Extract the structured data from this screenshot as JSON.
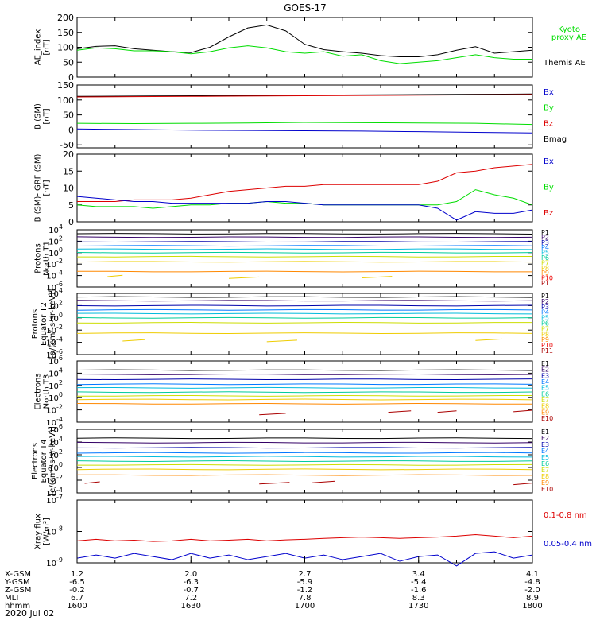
{
  "title": "GOES-17",
  "date_label": "2020 Jul 02",
  "ephemeris": {
    "row_labels": [
      "X-GSM",
      "Y-GSM",
      "Z-GSM",
      "MLT",
      "hhmm"
    ],
    "columns": [
      [
        "1.2",
        "-6.5",
        "-0.2",
        "6.7",
        "1600"
      ],
      [
        "2.0",
        "-6.3",
        "-0.7",
        "7.2",
        "1630"
      ],
      [
        "2.7",
        "-5.9",
        "-1.2",
        "7.8",
        "1700"
      ],
      [
        "3.4",
        "-5.4",
        "-1.6",
        "8.3",
        "1730"
      ],
      [
        "4.1",
        "-4.8",
        "-2.0",
        "8.9",
        "1800"
      ]
    ]
  },
  "colors": {
    "black": "#000000",
    "green": "#00dd00",
    "red": "#dd0000",
    "blue": "#0000cc",
    "darkred": "#880000",
    "P": [
      "#000000",
      "#330066",
      "#0000aa",
      "#0077ff",
      "#00bbdd",
      "#00cc99",
      "#ccdd00",
      "#eecc00",
      "#ff8800",
      "#ee0000",
      "#aa0000"
    ],
    "E": [
      "#000000",
      "#330066",
      "#0000aa",
      "#0077ff",
      "#00bbdd",
      "#00cc99",
      "#ccdd00",
      "#eecc00",
      "#ff8800",
      "#aa0000"
    ]
  },
  "chart_data": [
    {
      "type": "line",
      "ylabel": [
        "AE_index",
        "[nT]"
      ],
      "ylim": [
        0,
        200
      ],
      "yticks": [
        [
          "0",
          0
        ],
        [
          "50",
          50
        ],
        [
          "100",
          100
        ],
        [
          "150",
          150
        ],
        [
          "200",
          200
        ]
      ],
      "legend": [
        {
          "text": "Kyoto",
          "color": "#00dd00"
        },
        {
          "text": "proxy AE",
          "color": "#00dd00"
        },
        {
          "text": "Themis AE",
          "color": "#000000"
        }
      ],
      "x": [
        1600,
        1605,
        1610,
        1615,
        1620,
        1625,
        1630,
        1635,
        1640,
        1645,
        1650,
        1655,
        1700,
        1705,
        1710,
        1715,
        1720,
        1725,
        1730,
        1735,
        1740,
        1745,
        1750,
        1755,
        1800
      ],
      "series": [
        {
          "name": "Themis AE",
          "color": "#000000",
          "values": [
            95,
            103,
            105,
            95,
            90,
            85,
            82,
            100,
            135,
            165,
            175,
            155,
            110,
            92,
            85,
            80,
            72,
            68,
            68,
            75,
            90,
            102,
            80,
            85,
            90
          ]
        },
        {
          "name": "Kyoto proxy AE",
          "color": "#00dd00",
          "values": [
            90,
            98,
            95,
            88,
            88,
            85,
            78,
            85,
            98,
            105,
            98,
            85,
            80,
            85,
            70,
            75,
            55,
            45,
            50,
            55,
            65,
            75,
            65,
            60,
            60
          ]
        }
      ]
    },
    {
      "type": "line",
      "ylabel": [
        "B (SM)",
        "[nT]"
      ],
      "ylim": [
        -60,
        150
      ],
      "yticks": [
        [
          "-50",
          -50
        ],
        [
          "0",
          0
        ],
        [
          "50",
          50
        ],
        [
          "100",
          100
        ],
        [
          "150",
          150
        ]
      ],
      "legend": [
        {
          "text": "Bx",
          "color": "#0000cc"
        },
        {
          "text": "By",
          "color": "#00dd00"
        },
        {
          "text": "Bz",
          "color": "#dd0000"
        },
        {
          "text": "Bmag",
          "color": "#000000"
        }
      ],
      "x": [
        1600,
        1615,
        1630,
        1645,
        1700,
        1715,
        1730,
        1745,
        1800
      ],
      "series": [
        {
          "name": "Bmag",
          "color": "#000000",
          "values": [
            112,
            113,
            114,
            115,
            116,
            117,
            118,
            119,
            120
          ]
        },
        {
          "name": "Bz",
          "color": "#dd0000",
          "values": [
            110,
            111,
            112,
            113,
            114,
            115,
            116,
            117,
            118
          ]
        },
        {
          "name": "By",
          "color": "#00dd00",
          "values": [
            22,
            21,
            22,
            23,
            25,
            24,
            23,
            22,
            18
          ]
        },
        {
          "name": "Bx",
          "color": "#0000cc",
          "values": [
            3,
            1,
            -1,
            -2,
            -3,
            -4,
            -6,
            -8,
            -10
          ]
        }
      ]
    },
    {
      "type": "line",
      "ylabel": [
        "B (SM)-IGRF (SM)",
        "[nT]"
      ],
      "ylim": [
        0,
        20
      ],
      "yticks": [
        [
          "0",
          0
        ],
        [
          "5",
          5
        ],
        [
          "10",
          10
        ],
        [
          "15",
          15
        ],
        [
          "20",
          20
        ]
      ],
      "legend": [
        {
          "text": "Bx",
          "color": "#0000cc"
        },
        {
          "text": "By",
          "color": "#00dd00"
        },
        {
          "text": "Bz",
          "color": "#dd0000"
        }
      ],
      "x": [
        1600,
        1605,
        1610,
        1615,
        1620,
        1625,
        1630,
        1635,
        1640,
        1645,
        1650,
        1655,
        1700,
        1705,
        1710,
        1715,
        1720,
        1725,
        1730,
        1735,
        1740,
        1745,
        1750,
        1755,
        1800
      ],
      "series": [
        {
          "name": "Bz",
          "color": "#dd0000",
          "values": [
            6,
            6,
            6,
            6.5,
            6.5,
            6.5,
            7,
            8,
            9,
            9.5,
            10,
            10.5,
            10.5,
            11,
            11,
            11,
            11,
            11,
            11,
            12,
            14.5,
            15,
            16,
            16.5,
            17
          ]
        },
        {
          "name": "By",
          "color": "#00dd00",
          "values": [
            5,
            4.5,
            4.5,
            4.5,
            4,
            4.5,
            5,
            5,
            5.5,
            5.5,
            6,
            5.5,
            5.5,
            5,
            5,
            5,
            5,
            5,
            5,
            5,
            6,
            9.5,
            8,
            7,
            5
          ]
        },
        {
          "name": "Bx",
          "color": "#0000cc",
          "values": [
            7.5,
            7,
            6.5,
            6,
            6,
            5.5,
            5.5,
            5.5,
            5.5,
            5.5,
            6,
            6,
            5.5,
            5,
            5,
            5,
            5,
            5,
            5,
            4,
            0.5,
            3,
            2.5,
            2.5,
            3.5
          ]
        }
      ]
    },
    {
      "type": "line",
      "log": true,
      "ylabel": [
        "Protons",
        "North T1"
      ],
      "ylim_exp": [
        -6,
        4
      ],
      "tick_exps": [
        -6,
        -4,
        -2,
        0,
        2,
        4
      ],
      "legend": [
        "P1",
        "P2",
        "P3",
        "P4",
        "P5",
        "P6",
        "P7",
        "P8",
        "P9",
        "P10",
        "P11"
      ],
      "level_exps": [
        3.3,
        2.7,
        1.9,
        1.2,
        0.6,
        0,
        -0.7,
        -1.6,
        -3.3
      ],
      "fragments": [
        {
          "x0": 1608,
          "x1": 1612,
          "e": -4.2
        },
        {
          "x0": 1640,
          "x1": 1648,
          "e": -4.5
        },
        {
          "x0": 1715,
          "x1": 1723,
          "e": -4.4
        }
      ]
    },
    {
      "type": "line",
      "log": true,
      "ylabel": [
        "Protons",
        "Equator T2",
        "[p/(cm²-s-sr-keV)]"
      ],
      "ylim_exp": [
        -6,
        4
      ],
      "tick_exps": [
        -6,
        -4,
        -2,
        0,
        2,
        4
      ],
      "legend": [
        "P1",
        "P2",
        "P3",
        "P4",
        "P5",
        "P6",
        "P7",
        "P8",
        "P9",
        "P10",
        "P11"
      ],
      "level_exps": [
        3.4,
        2.8,
        2,
        1.3,
        0.7,
        0,
        -0.8,
        -2.5
      ],
      "fragments": [
        {
          "x0": 1612,
          "x1": 1618,
          "e": -3.8
        },
        {
          "x0": 1650,
          "x1": 1658,
          "e": -3.9
        },
        {
          "x0": 1745,
          "x1": 1752,
          "e": -3.7
        }
      ]
    },
    {
      "type": "line",
      "log": true,
      "ylabel": [
        "Electrons",
        "North T3"
      ],
      "ylim_exp": [
        -4,
        6
      ],
      "tick_exps": [
        -4,
        -2,
        0,
        2,
        4,
        6
      ],
      "legend": [
        "E1",
        "E2",
        "E3",
        "E4",
        "E5",
        "E6",
        "E7",
        "E8",
        "E9",
        "E10"
      ],
      "level_exps": [
        4.5,
        3.8,
        3,
        2.2,
        1.6,
        0.9,
        0.3,
        -0.3,
        -1
      ],
      "fragments": [
        {
          "x0": 1648,
          "x1": 1655,
          "e": -2.8
        },
        {
          "x0": 1722,
          "x1": 1728,
          "e": -2.4
        },
        {
          "x0": 1735,
          "x1": 1740,
          "e": -2.4
        },
        {
          "x0": 1755,
          "x1": 1800,
          "e": -2.3
        }
      ]
    },
    {
      "type": "line",
      "log": true,
      "ylabel": [
        "Electrons",
        "Equator T4",
        "[e/(cm²-s-sr-keV)]"
      ],
      "ylim_exp": [
        -4,
        6
      ],
      "tick_exps": [
        -4,
        -2,
        0,
        2,
        4,
        6
      ],
      "legend": [
        "E1",
        "E2",
        "E3",
        "E4",
        "E5",
        "E6",
        "E7",
        "E8",
        "E9",
        "E10"
      ],
      "level_exps": [
        4.6,
        3.9,
        3.1,
        2.3,
        1.7,
        1,
        0.4,
        -0.3,
        -1.2
      ],
      "fragments": [
        {
          "x0": 1602,
          "x1": 1606,
          "e": -2.5
        },
        {
          "x0": 1648,
          "x1": 1656,
          "e": -2.6
        },
        {
          "x0": 1702,
          "x1": 1708,
          "e": -2.4
        },
        {
          "x0": 1755,
          "x1": 1800,
          "e": -2.7
        }
      ]
    },
    {
      "type": "line",
      "log": true,
      "ylabel": [
        "Xray flux",
        "[W/m²]"
      ],
      "ylim_exp": [
        -9,
        -7
      ],
      "tick_exps": [
        -9,
        -8,
        -7
      ],
      "legend": [
        {
          "text": "0.1-0.8 nm",
          "color": "#dd0000"
        },
        {
          "text": "0.05-0.4 nm",
          "color": "#0000cc"
        }
      ],
      "x": [
        1600,
        1605,
        1610,
        1615,
        1620,
        1625,
        1630,
        1635,
        1640,
        1645,
        1650,
        1655,
        1700,
        1705,
        1710,
        1715,
        1720,
        1725,
        1730,
        1735,
        1740,
        1745,
        1750,
        1755,
        1800
      ],
      "series": [
        {
          "name": "0.1-0.8 nm",
          "color": "#dd0000",
          "values": [
            -8.3,
            -8.25,
            -8.3,
            -8.28,
            -8.32,
            -8.3,
            -8.25,
            -8.3,
            -8.28,
            -8.25,
            -8.3,
            -8.27,
            -8.25,
            -8.22,
            -8.2,
            -8.18,
            -8.2,
            -8.22,
            -8.2,
            -8.18,
            -8.15,
            -8.1,
            -8.15,
            -8.2,
            -8.15
          ]
        },
        {
          "name": "0.05-0.4 nm",
          "color": "#0000cc",
          "values": [
            -8.85,
            -8.75,
            -8.85,
            -8.7,
            -8.8,
            -8.9,
            -8.7,
            -8.85,
            -8.75,
            -8.9,
            -8.8,
            -8.7,
            -8.85,
            -8.75,
            -8.9,
            -8.8,
            -8.7,
            -8.95,
            -8.8,
            -8.75,
            -9.1,
            -8.7,
            -8.65,
            -8.85,
            -8.75
          ]
        }
      ]
    }
  ]
}
